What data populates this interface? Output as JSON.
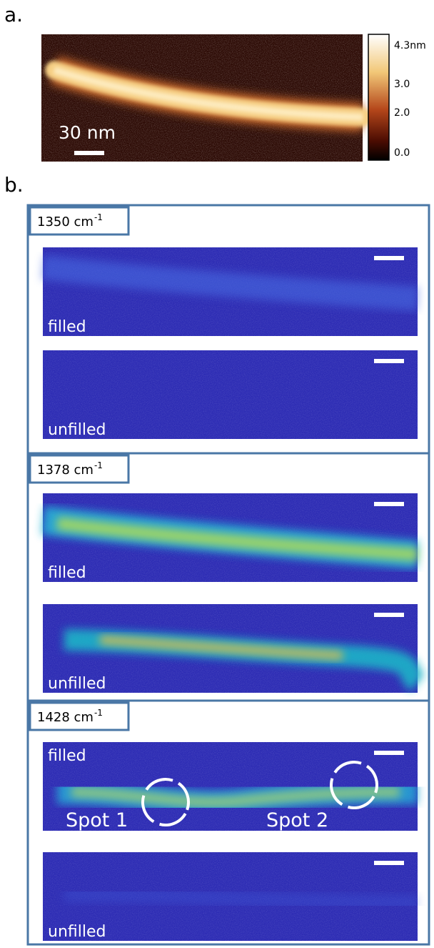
{
  "figure": {
    "panel_a": {
      "label": "a.",
      "scale_bar": "30 nm",
      "colorbar_ticks": [
        "4.3nm",
        "3.0",
        "2.0",
        "0.0"
      ]
    },
    "panel_b": {
      "label": "b.",
      "sections": [
        {
          "wavenumber": "1350 cm",
          "exponent": "-1",
          "maps": [
            {
              "label": "filled"
            },
            {
              "label": "unfilled"
            }
          ]
        },
        {
          "wavenumber": "1378 cm",
          "exponent": "-1",
          "maps": [
            {
              "label": "filled"
            },
            {
              "label": "unfilled"
            }
          ]
        },
        {
          "wavenumber": "1428 cm",
          "exponent": "-1",
          "maps": [
            {
              "label": "filled",
              "spots": [
                "Spot 1",
                "Spot 2"
              ]
            },
            {
              "label": "unfilled"
            }
          ]
        }
      ]
    }
  }
}
